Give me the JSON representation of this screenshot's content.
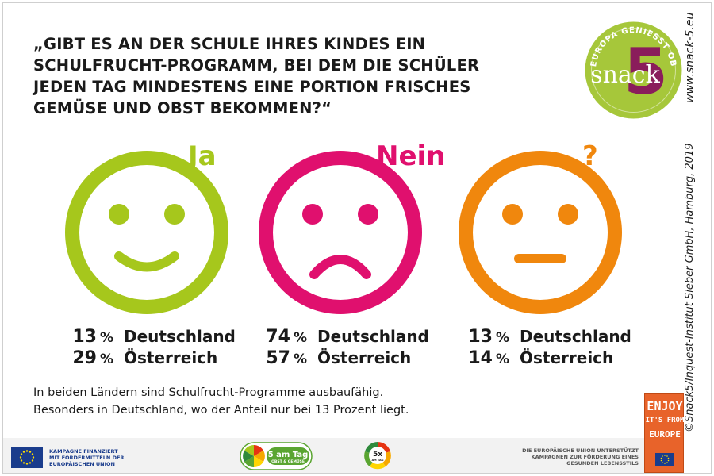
{
  "question": {
    "lines": [
      "„GIBT ES AN DER SCHULE IHRES KINDES EIN",
      "SCHULFRUCHT-PROGRAMM, BEI DEM DIE SCHÜLER",
      "JEDEN TAG MINDESTENS EINE PORTION FRISCHES",
      "GEMÜSE UND OBST BEKOMMEN?“"
    ]
  },
  "brand_logo": {
    "ring_text": "EUROPA GENIESST OBST & GEMÜSE",
    "wordmark": "snack",
    "number": "5",
    "colors": {
      "disc": "#a6c73a",
      "number": "#8a1d5b",
      "text": "#ffffff"
    }
  },
  "side_texts": {
    "website": "www.snack-5.eu",
    "copyright": "©Snack5/Inquest-Institut Sieber GmbH, Hamburg, 2019"
  },
  "answers": [
    {
      "label": "Ja",
      "face": "smile",
      "color": "#a6c71c",
      "stats": [
        {
          "value": "13",
          "unit": "%",
          "country": "Deutschland"
        },
        {
          "value": "29",
          "unit": "%",
          "country": "Österreich"
        }
      ]
    },
    {
      "label": "Nein",
      "face": "frown",
      "color": "#e0106e",
      "stats": [
        {
          "value": "74",
          "unit": "%",
          "country": "Deutschland"
        },
        {
          "value": "57",
          "unit": "%",
          "country": "Österreich"
        }
      ]
    },
    {
      "label": "?",
      "face": "neutral",
      "color": "#f0870d",
      "stats": [
        {
          "value": "13",
          "unit": "%",
          "country": "Deutschland"
        },
        {
          "value": "14",
          "unit": "%",
          "country": "Österreich"
        }
      ]
    }
  ],
  "summary": {
    "lines": [
      "In beiden Ländern sind Schulfrucht-Programme ausbaufähig.",
      "Besonders in Deutschland, wo der Anteil nur bei 13 Prozent liegt."
    ]
  },
  "footer": {
    "eu_left_lines": [
      "KAMPAGNE FINANZIERT",
      "MIT FÖRDERMITTELN DER",
      "EUROPÄISCHEN UNION"
    ],
    "logo_5amtag": {
      "title": "5 am Tag",
      "subtitle": "OBST & GEMÜSE"
    },
    "logo_5x": {
      "title": "5x",
      "subtitle": "AM TAG"
    },
    "eu_right_lines": [
      "DIE EUROPÄISCHE UNION UNTERSTÜTZT",
      "KAMPAGNEN ZUR FÖRDERUNG EINES",
      "GESUNDEN LEBENSSTILS"
    ],
    "enjoy_lines": [
      "ENJOY",
      "IT'S FROM",
      "EUROPE"
    ],
    "colors": {
      "eu_blue": "#1a3c8c",
      "eu_star": "#ffdd00",
      "enjoy_bg": "#e8632a",
      "amtag_green": "#5aa531"
    }
  }
}
